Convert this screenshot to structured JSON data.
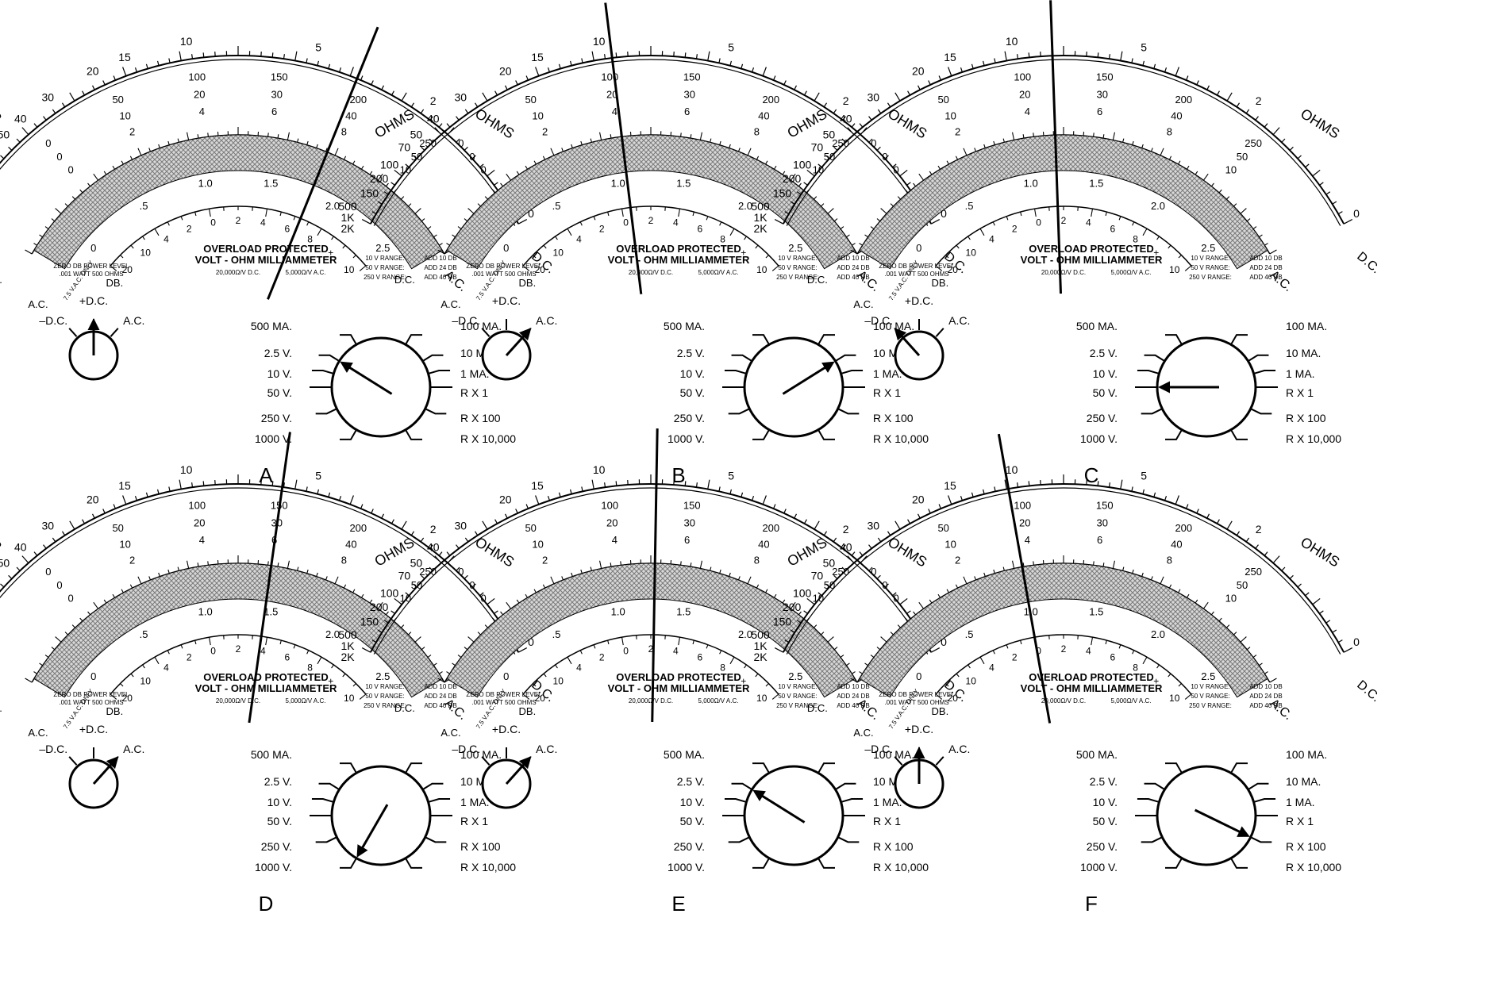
{
  "meter": {
    "ohms_label": "OHMS",
    "ohms_scale": [
      "500",
      "1K",
      "2K",
      "150",
      "200",
      "100",
      "70",
      "50",
      "40",
      "30",
      "20",
      "15",
      "10",
      "5",
      "2",
      "0"
    ],
    "dc_label": "D.C.",
    "ac_label": "A.C.",
    "volt_scale": [
      [
        "0",
        "50",
        "100",
        "150",
        "200",
        "250"
      ],
      [
        "0",
        "10",
        "20",
        "30",
        "40",
        "50"
      ],
      [
        "0",
        "2",
        "4",
        "6",
        "8",
        "10"
      ]
    ],
    "ac_low_scale": [
      "0",
      ".5",
      "1.0",
      "1.5",
      "2.0",
      "2.5"
    ],
    "db_scale": [
      "20",
      "10",
      "4",
      "2",
      "0",
      "2",
      "4",
      "6",
      "8",
      "+",
      "10"
    ],
    "db_label": "DB.",
    "ac_note": "7.5 V.A.C. ONLY",
    "title_line1": "OVERLOAD PROTECTED",
    "title_line2": "VOLT - OHM MILLIAMMETER",
    "sensitivity_dc": "20,000Ω/V D.C.",
    "sensitivity_ac": "5,000Ω/V A.C.",
    "zero_db_line1": "ZERO DB POWER LEVEL",
    "zero_db_line2": ".001 WATT  500  OHMS",
    "range_notes": [
      [
        "10 V RANGE:",
        "ADD 10 DB"
      ],
      [
        "50 V RANGE:",
        "ADD 24 DB"
      ],
      [
        "250 V RANGE:",
        "ADD 40 DB"
      ]
    ]
  },
  "polarity_switch": {
    "labels": [
      "–D.C.",
      "+D.C.",
      "A.C."
    ]
  },
  "range_switch": {
    "left_labels": [
      "500 MA.",
      "2.5 V.",
      "10 V.",
      "50 V.",
      "250 V.",
      "1000 V."
    ],
    "right_labels": [
      "100 MA.",
      "10 MA.",
      "1 MA.",
      "R X 1",
      "R X 100",
      "R X 10,000"
    ]
  },
  "panels": [
    {
      "label": "A",
      "pointer_deg": 22,
      "polarity": "+D.C.",
      "range": "2.5 V."
    },
    {
      "label": "B",
      "pointer_deg": -7,
      "polarity": "A.C.",
      "range": "10 MA."
    },
    {
      "label": "C",
      "pointer_deg": -2,
      "polarity": "–D.C.",
      "range": "50 V."
    },
    {
      "label": "D",
      "pointer_deg": 8,
      "polarity": "A.C.",
      "range": "1000 V."
    },
    {
      "label": "E",
      "pointer_deg": 1,
      "polarity": "A.C.",
      "range": "2.5 V."
    },
    {
      "label": "F",
      "pointer_deg": -10,
      "polarity": "+D.C.",
      "range": "R X 100"
    }
  ]
}
